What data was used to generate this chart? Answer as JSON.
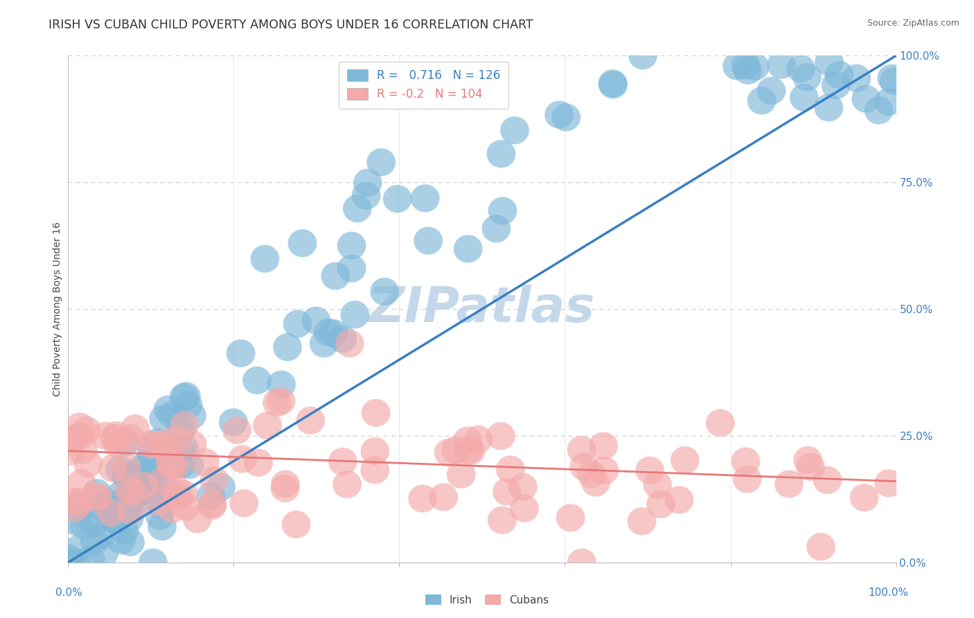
{
  "title": "IRISH VS CUBAN CHILD POVERTY AMONG BOYS UNDER 16 CORRELATION CHART",
  "source": "Source: ZipAtlas.com",
  "ylabel": "Child Poverty Among Boys Under 16",
  "ytick_values": [
    0,
    25,
    50,
    75,
    100
  ],
  "xlim": [
    0,
    100
  ],
  "ylim": [
    0,
    100
  ],
  "irish_R": 0.716,
  "irish_N": 126,
  "cuban_R": -0.2,
  "cuban_N": 104,
  "irish_color": "#7EB8D9",
  "cuban_color": "#F4AAAA",
  "irish_line_color": "#3A7FC1",
  "cuban_line_color": "#E87878",
  "background_color": "#FFFFFF",
  "grid_color": "#CCCCCC",
  "title_color": "#333333",
  "watermark_color": "#C5D8EA",
  "legend_label_irish": "Irish",
  "legend_label_cubans": "Cubans",
  "irish_line_x0": 0,
  "irish_line_y0": 0,
  "irish_line_x1": 100,
  "irish_line_y1": 100,
  "cuban_line_x0": 0,
  "cuban_line_y0": 22,
  "cuban_line_x1": 100,
  "cuban_line_y1": 16
}
